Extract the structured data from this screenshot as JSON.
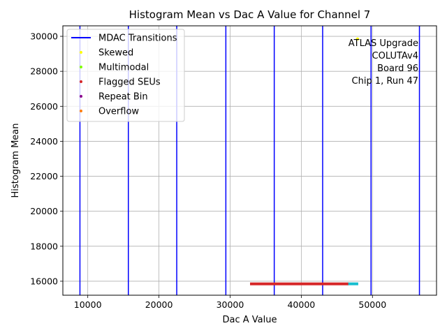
{
  "chart_data": {
    "type": "scatter",
    "title": "Histogram Mean vs Dac A Value for Channel 7",
    "xlabel": "Dac A Value",
    "ylabel": "Histogram Mean",
    "xlim": [
      6500,
      59000
    ],
    "ylim": [
      15200,
      30600
    ],
    "x_ticks": [
      10000,
      20000,
      30000,
      40000,
      50000
    ],
    "y_ticks": [
      16000,
      18000,
      20000,
      22000,
      24000,
      26000,
      28000,
      30000
    ],
    "x_tick_labels": [
      "10000",
      "20000",
      "30000",
      "40000",
      "50000"
    ],
    "y_tick_labels": [
      "16000",
      "18000",
      "20000",
      "22000",
      "24000",
      "26000",
      "28000",
      "30000"
    ],
    "grid": true,
    "legend_position": "top-left",
    "mdac_transitions": {
      "name": "MDAC Transitions",
      "color": "#0000ff",
      "x": [
        8900,
        15700,
        22500,
        29400,
        36200,
        43000,
        49800,
        56600
      ]
    },
    "series": [
      {
        "name": "",
        "color": "#17becf",
        "kind": "segment",
        "x_start": 46500,
        "x_end": 48000,
        "y": 15850
      },
      {
        "name": "Flagged SEUs",
        "color": "#d62728",
        "kind": "segment",
        "x_start": 32800,
        "x_end": 46600,
        "y": 15850
      },
      {
        "name": "Skewed",
        "color": "#ffff00",
        "kind": "points",
        "x": [
          47900
        ],
        "y": [
          29850
        ]
      }
    ],
    "legend": [
      {
        "label": "MDAC Transitions",
        "kind": "line",
        "color": "#0000ff"
      },
      {
        "label": "Skewed",
        "kind": "marker",
        "color": "#ffff00"
      },
      {
        "label": "Multimodal",
        "kind": "marker",
        "color": "#7fff00"
      },
      {
        "label": "Flagged SEUs",
        "kind": "marker",
        "color": "#d62728"
      },
      {
        "label": "Repeat Bin",
        "kind": "marker",
        "color": "#8b008b"
      },
      {
        "label": "Overflow",
        "kind": "marker",
        "color": "#ff7f0e"
      }
    ],
    "annotation": [
      "ATLAS Upgrade",
      "COLUTAv4",
      "Board 96",
      "Chip 1, Run 47"
    ]
  },
  "colors": {
    "grid": "#b0b0b0",
    "axes": "#000000"
  }
}
